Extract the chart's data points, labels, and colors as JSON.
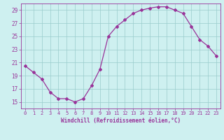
{
  "x": [
    0,
    1,
    2,
    3,
    4,
    5,
    6,
    7,
    8,
    9,
    10,
    11,
    12,
    13,
    14,
    15,
    16,
    17,
    18,
    19,
    20,
    21,
    22,
    23
  ],
  "y": [
    20.5,
    19.5,
    18.5,
    16.5,
    15.5,
    15.5,
    15.0,
    15.5,
    17.5,
    20.0,
    25.0,
    26.5,
    27.5,
    28.5,
    29.0,
    29.3,
    29.5,
    29.5,
    29.0,
    28.5,
    26.5,
    24.5,
    23.5,
    22.0
  ],
  "line_color": "#993399",
  "marker": "D",
  "markersize": 2.0,
  "linewidth": 0.9,
  "bg_color": "#cef0f0",
  "grid_color": "#99cccc",
  "xlabel": "Windchill (Refroidissement éolien,°C)",
  "xlabel_color": "#993399",
  "tick_color": "#993399",
  "ylim": [
    14,
    30
  ],
  "yticks": [
    15,
    17,
    19,
    21,
    23,
    25,
    27,
    29
  ],
  "xticks": [
    0,
    1,
    2,
    3,
    4,
    5,
    6,
    7,
    8,
    9,
    10,
    11,
    12,
    13,
    14,
    15,
    16,
    17,
    18,
    19,
    20,
    21,
    22,
    23
  ],
  "figsize": [
    3.2,
    2.0
  ],
  "dpi": 100
}
